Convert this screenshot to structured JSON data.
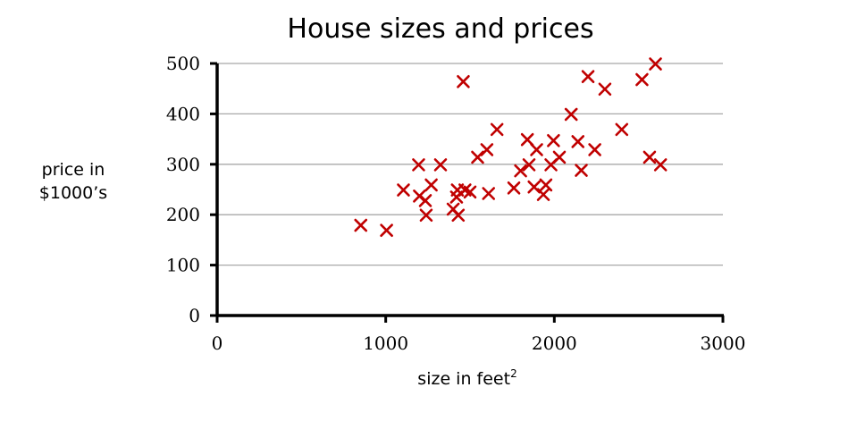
{
  "chart_data": {
    "type": "scatter",
    "title": "House sizes and prices",
    "xlabel": "size in feet",
    "xlabel_superscript": "2",
    "ylabel_lines": [
      "price in",
      "$1000’s"
    ],
    "xlim": [
      0,
      3000
    ],
    "ylim": [
      0,
      500
    ],
    "xticks": [
      "0",
      "1000",
      "2000",
      "3000"
    ],
    "yticks": [
      "0",
      "100",
      "200",
      "300",
      "400",
      "500"
    ],
    "grid": "horizontal",
    "marker": "x",
    "marker_color": "#c00000",
    "points": [
      [
        852,
        179
      ],
      [
        1005,
        169
      ],
      [
        1105,
        249
      ],
      [
        1195,
        299
      ],
      [
        1200,
        237
      ],
      [
        1235,
        228
      ],
      [
        1240,
        199
      ],
      [
        1270,
        259
      ],
      [
        1325,
        299
      ],
      [
        1400,
        211
      ],
      [
        1420,
        235
      ],
      [
        1425,
        249
      ],
      [
        1430,
        199
      ],
      [
        1460,
        464
      ],
      [
        1470,
        249
      ],
      [
        1500,
        245
      ],
      [
        1545,
        314
      ],
      [
        1600,
        329
      ],
      [
        1610,
        242
      ],
      [
        1660,
        369
      ],
      [
        1760,
        253
      ],
      [
        1800,
        287
      ],
      [
        1840,
        349
      ],
      [
        1850,
        299
      ],
      [
        1880,
        255
      ],
      [
        1895,
        329
      ],
      [
        1935,
        240
      ],
      [
        1950,
        259
      ],
      [
        1980,
        299
      ],
      [
        1995,
        347
      ],
      [
        2030,
        314
      ],
      [
        2100,
        399
      ],
      [
        2140,
        345
      ],
      [
        2160,
        288
      ],
      [
        2200,
        474
      ],
      [
        2240,
        329
      ],
      [
        2300,
        449
      ],
      [
        2400,
        369
      ],
      [
        2520,
        468
      ],
      [
        2565,
        314
      ],
      [
        2600,
        499
      ],
      [
        2630,
        299
      ]
    ]
  }
}
